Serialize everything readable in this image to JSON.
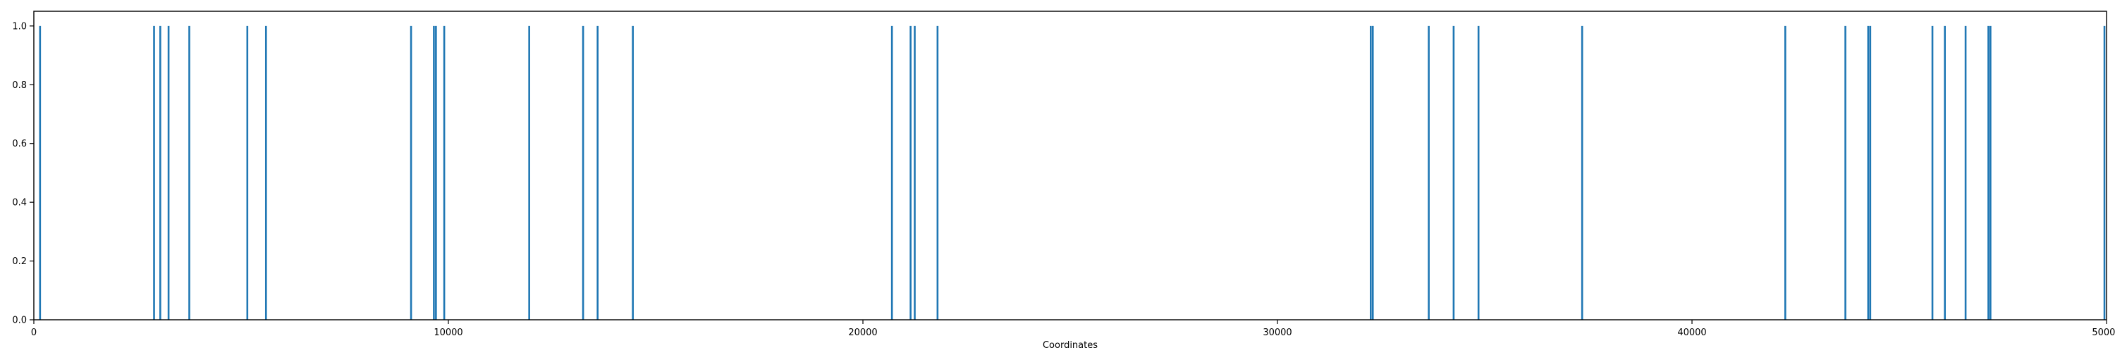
{
  "chart_data": {
    "type": "bar",
    "title": "",
    "xlabel": "Coordinates",
    "ylabel": "",
    "xlim": [
      0,
      50000
    ],
    "ylim": [
      0,
      1.05
    ],
    "grid": false,
    "bar_color": "#1f77b4",
    "x_ticks": [
      {
        "value": 0,
        "label": "0"
      },
      {
        "value": 10000,
        "label": "10000"
      },
      {
        "value": 20000,
        "label": "20000"
      },
      {
        "value": 30000,
        "label": "30000"
      },
      {
        "value": 40000,
        "label": "40000"
      },
      {
        "value": 50000,
        "label": "50000"
      }
    ],
    "y_ticks": [
      {
        "value": 0.0,
        "label": "0.0"
      },
      {
        "value": 0.2,
        "label": "0.2"
      },
      {
        "value": 0.4,
        "label": "0.4"
      },
      {
        "value": 0.6,
        "label": "0.6"
      },
      {
        "value": 0.8,
        "label": "0.8"
      },
      {
        "value": 1.0,
        "label": "1.0"
      }
    ],
    "x": [
      150,
      2900,
      3050,
      3250,
      3750,
      5150,
      5600,
      9100,
      9650,
      9700,
      9900,
      11950,
      13250,
      13600,
      14450,
      20700,
      21150,
      21250,
      21800,
      32250,
      32300,
      33650,
      34250,
      34850,
      37350,
      42250,
      43700,
      44250,
      44300,
      45800,
      46100,
      46600,
      47150,
      47200,
      49950
    ],
    "values": [
      1,
      1,
      1,
      1,
      1,
      1,
      1,
      1,
      1,
      1,
      1,
      1,
      1,
      1,
      1,
      1,
      1,
      1,
      1,
      1,
      1,
      1,
      1,
      1,
      1,
      1,
      1,
      1,
      1,
      1,
      1,
      1,
      1,
      1,
      1
    ]
  }
}
